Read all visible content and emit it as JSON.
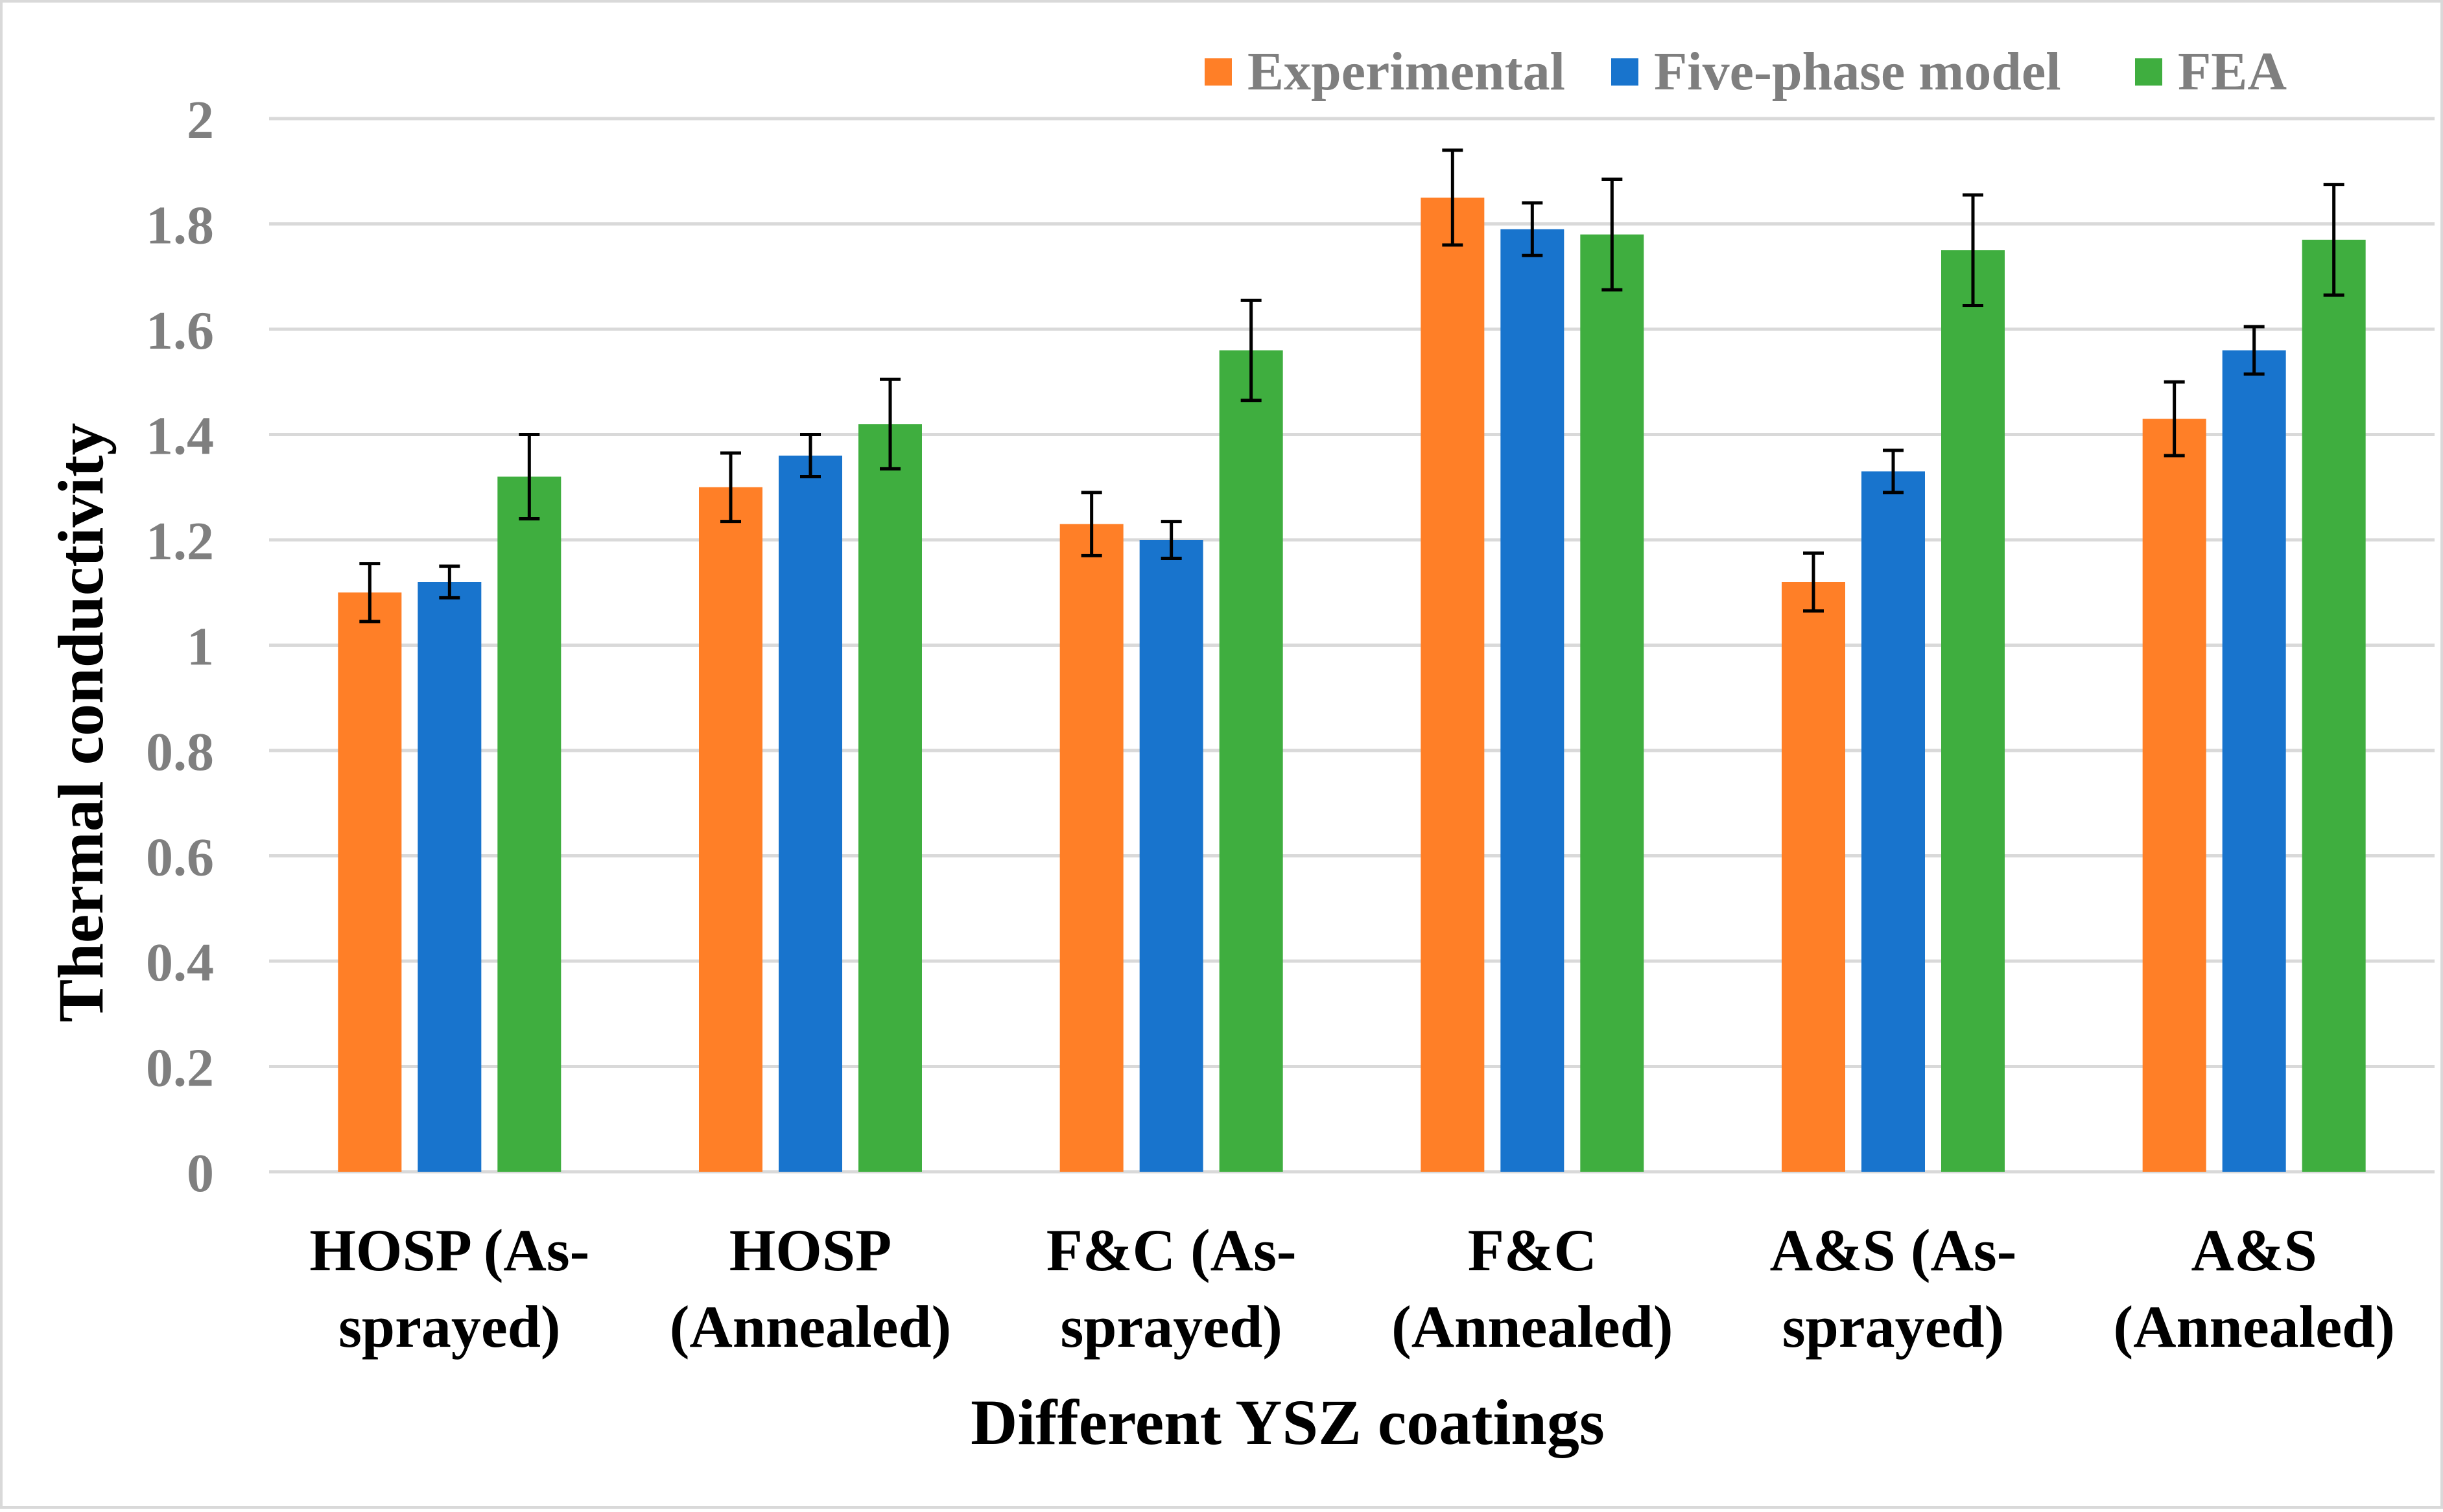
{
  "chart_data": {
    "type": "bar",
    "title": "",
    "xlabel": "Different YSZ coatings",
    "ylabel": "Thermal conductivity",
    "ylim": [
      0,
      2
    ],
    "y_ticks": [
      "0",
      "0.2",
      "0.4",
      "0.6",
      "0.8",
      "1",
      "1.2",
      "1.4",
      "1.6",
      "1.8",
      "2"
    ],
    "y_tick_values": [
      0,
      0.2,
      0.4,
      0.6,
      0.8,
      1,
      1.2,
      1.4,
      1.6,
      1.8,
      2
    ],
    "grid": true,
    "legend_position": "top-right",
    "categories": [
      [
        "HOSP (As-",
        "sprayed)"
      ],
      [
        "HOSP",
        "(Annealed)"
      ],
      [
        "F&C (As-",
        "sprayed)"
      ],
      [
        "F&C",
        "(Annealed)"
      ],
      [
        "A&S (As-",
        "sprayed)"
      ],
      [
        "A&S",
        "(Annealed)"
      ]
    ],
    "series": [
      {
        "name": "Experimental",
        "color": "#ff7f27",
        "values": [
          1.1,
          1.3,
          1.23,
          1.85,
          1.12,
          1.43
        ],
        "errors": [
          0.055,
          0.065,
          0.06,
          0.09,
          0.055,
          0.07
        ]
      },
      {
        "name": "Five-phase model",
        "color": "#1874cd",
        "values": [
          1.12,
          1.36,
          1.2,
          1.79,
          1.33,
          1.56
        ],
        "errors": [
          0.03,
          0.04,
          0.035,
          0.05,
          0.04,
          0.045
        ]
      },
      {
        "name": "FEA",
        "color": "#3fae3f",
        "values": [
          1.32,
          1.42,
          1.56,
          1.78,
          1.75,
          1.77
        ],
        "errors": [
          0.08,
          0.085,
          0.095,
          0.105,
          0.105,
          0.105
        ]
      }
    ]
  }
}
